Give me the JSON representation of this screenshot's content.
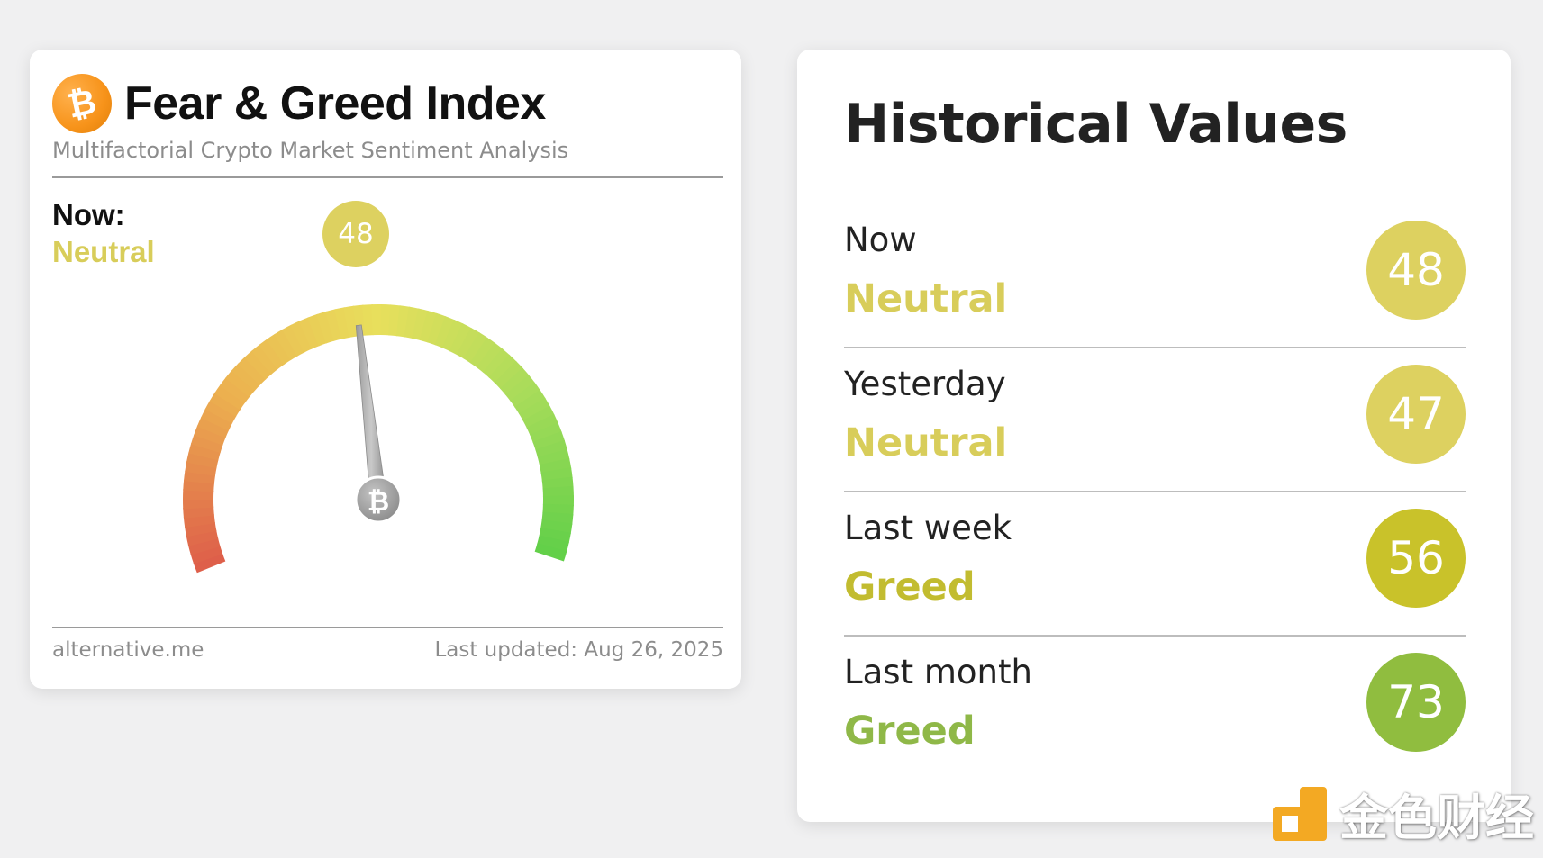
{
  "fear_greed": {
    "title": "Fear & Greed Index",
    "subtitle": "Multifactorial Crypto Market Sentiment Analysis",
    "now_label": "Now:",
    "now_classification": "Neutral",
    "value": "48",
    "value_number": 48,
    "footer_source": "alternative.me",
    "footer_updated": "Last updated: Aug 26, 2025",
    "logo_icon": "bitcoin-icon",
    "gauge_colors": [
      "#de5f4a",
      "#ecb04f",
      "#e8df5c",
      "#a8dc5a",
      "#5fcf48"
    ]
  },
  "historical": {
    "title": "Historical Values",
    "rows": [
      {
        "label": "Now",
        "classification": "Neutral",
        "value": "48",
        "color": "#ddd160",
        "class_color": "#d8cd5a"
      },
      {
        "label": "Yesterday",
        "classification": "Neutral",
        "value": "47",
        "color": "#ddd160",
        "class_color": "#d8cd5a"
      },
      {
        "label": "Last week",
        "classification": "Greed",
        "value": "56",
        "color": "#c9c22a",
        "class_color": "#c2bc30"
      },
      {
        "label": "Last month",
        "classification": "Greed",
        "value": "73",
        "color": "#90bd3f",
        "class_color": "#8fb848"
      }
    ]
  },
  "watermark": {
    "text": "金色财经",
    "icon": "jinse-logo-icon",
    "color": "#f3a923"
  }
}
